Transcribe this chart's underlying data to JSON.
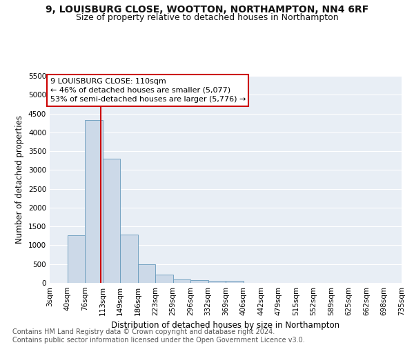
{
  "title": "9, LOUISBURG CLOSE, WOOTTON, NORTHAMPTON, NN4 6RF",
  "subtitle": "Size of property relative to detached houses in Northampton",
  "xlabel": "Distribution of detached houses by size in Northampton",
  "ylabel": "Number of detached properties",
  "footnote": "Contains HM Land Registry data © Crown copyright and database right 2024.\nContains public sector information licensed under the Open Government Licence v3.0.",
  "bin_labels": [
    "3sqm",
    "40sqm",
    "76sqm",
    "113sqm",
    "149sqm",
    "186sqm",
    "223sqm",
    "259sqm",
    "296sqm",
    "332sqm",
    "369sqm",
    "406sqm",
    "442sqm",
    "479sqm",
    "515sqm",
    "552sqm",
    "589sqm",
    "625sqm",
    "662sqm",
    "698sqm",
    "735sqm"
  ],
  "bar_values": [
    0,
    1270,
    4330,
    3300,
    1290,
    490,
    215,
    90,
    70,
    55,
    60,
    0,
    0,
    0,
    0,
    0,
    0,
    0,
    0,
    0
  ],
  "bar_color": "#ccd9e8",
  "bar_edge_color": "#6699bb",
  "vline_color": "#cc0000",
  "annotation_text": "9 LOUISBURG CLOSE: 110sqm\n← 46% of detached houses are smaller (5,077)\n53% of semi-detached houses are larger (5,776) →",
  "annotation_box_color": "#ffffff",
  "annotation_box_edge": "#cc0000",
  "ylim": [
    0,
    5500
  ],
  "yticks": [
    0,
    500,
    1000,
    1500,
    2000,
    2500,
    3000,
    3500,
    4000,
    4500,
    5000,
    5500
  ],
  "background_color": "#e8eef5",
  "grid_color": "#ffffff",
  "title_fontsize": 10,
  "subtitle_fontsize": 9,
  "axis_label_fontsize": 8.5,
  "tick_fontsize": 7.5,
  "annotation_fontsize": 8,
  "footnote_fontsize": 7
}
